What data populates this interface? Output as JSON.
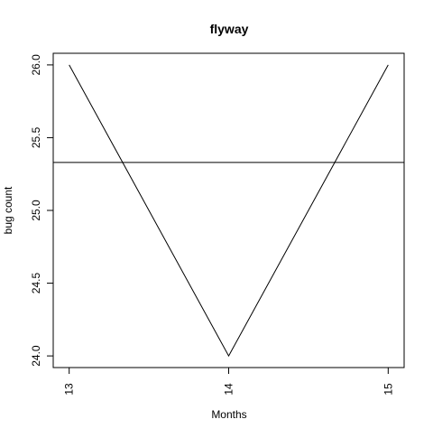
{
  "chart_data": {
    "type": "line",
    "title": "flyway",
    "xlabel": "Months",
    "ylabel": "bug count",
    "x": [
      13,
      14,
      15
    ],
    "series": [
      {
        "values": [
          26,
          24,
          26
        ],
        "color": "#000000"
      }
    ],
    "reference_line": {
      "y": 25.33,
      "color": "#000000"
    },
    "xlim": [
      12.9,
      15.1
    ],
    "ylim": [
      23.92,
      26.08
    ],
    "xticks": [
      13,
      14,
      15
    ],
    "xtick_labels": [
      "13",
      "14",
      "15"
    ],
    "yticks": [
      24.0,
      24.5,
      25.0,
      25.5,
      26.0
    ],
    "ytick_labels": [
      "24.0",
      "24.5",
      "25.0",
      "25.5",
      "26.0"
    ],
    "grid": false,
    "legend": "none"
  }
}
